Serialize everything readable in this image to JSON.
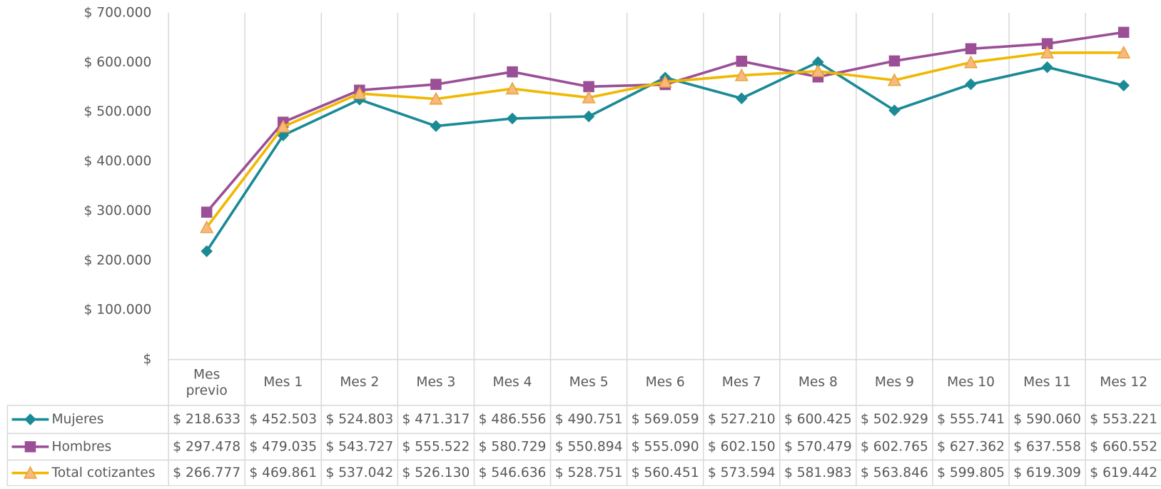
{
  "chart_data": {
    "type": "line",
    "categories": [
      "Mes previo",
      "Mes 1",
      "Mes 2",
      "Mes 3",
      "Mes 4",
      "Mes 5",
      "Mes 6",
      "Mes 7",
      "Mes 8",
      "Mes 9",
      "Mes 10",
      "Mes 11",
      "Mes 12"
    ],
    "ylim": [
      0,
      700000
    ],
    "yticks": [
      {
        "value": 0,
        "label": "$"
      },
      {
        "value": 100000,
        "label": "$ 100.000"
      },
      {
        "value": 200000,
        "label": "$ 200.000"
      },
      {
        "value": 300000,
        "label": "$ 300.000"
      },
      {
        "value": 400000,
        "label": "$ 400.000"
      },
      {
        "value": 500000,
        "label": "$ 500.000"
      },
      {
        "value": 600000,
        "label": "$ 600.000"
      },
      {
        "value": 700000,
        "label": "$ 700.000"
      }
    ],
    "series": [
      {
        "name": "Mujeres",
        "color": "#1a8a96",
        "marker": "diamond",
        "marker_color": "#1a8a96",
        "values": [
          218633,
          452503,
          524803,
          471317,
          486556,
          490751,
          569059,
          527210,
          600425,
          502929,
          555741,
          590060,
          553221
        ],
        "value_labels": [
          "$ 218.633",
          "$ 452.503",
          "$ 524.803",
          "$ 471.317",
          "$ 486.556",
          "$ 490.751",
          "$ 569.059",
          "$ 527.210",
          "$ 600.425",
          "$ 502.929",
          "$ 555.741",
          "$ 590.060",
          "$ 553.221"
        ]
      },
      {
        "name": "Hombres",
        "color": "#9b4f96",
        "marker": "square",
        "marker_color": "#9b4f96",
        "values": [
          297478,
          479035,
          543727,
          555522,
          580729,
          550894,
          555090,
          602150,
          570479,
          602765,
          627362,
          637558,
          660552
        ],
        "value_labels": [
          "$ 297.478",
          "$ 479.035",
          "$ 543.727",
          "$ 555.522",
          "$ 580.729",
          "$ 550.894",
          "$ 555.090",
          "$ 602.150",
          "$ 570.479",
          "$ 602.765",
          "$ 627.362",
          "$ 637.558",
          "$ 660.552"
        ]
      },
      {
        "name": "Total cotizantes",
        "color": "#f0b800",
        "marker": "triangle",
        "marker_color": "#f9b97c",
        "values": [
          266777,
          469861,
          537042,
          526130,
          546636,
          528751,
          560451,
          573594,
          581983,
          563846,
          599805,
          619309,
          619442
        ],
        "value_labels": [
          "$ 266.777",
          "$ 469.861",
          "$ 537.042",
          "$ 526.130",
          "$ 546.636",
          "$ 528.751",
          "$ 560.451",
          "$ 573.594",
          "$ 581.983",
          "$ 563.846",
          "$ 599.805",
          "$ 619.309",
          "$ 619.442"
        ]
      }
    ]
  }
}
